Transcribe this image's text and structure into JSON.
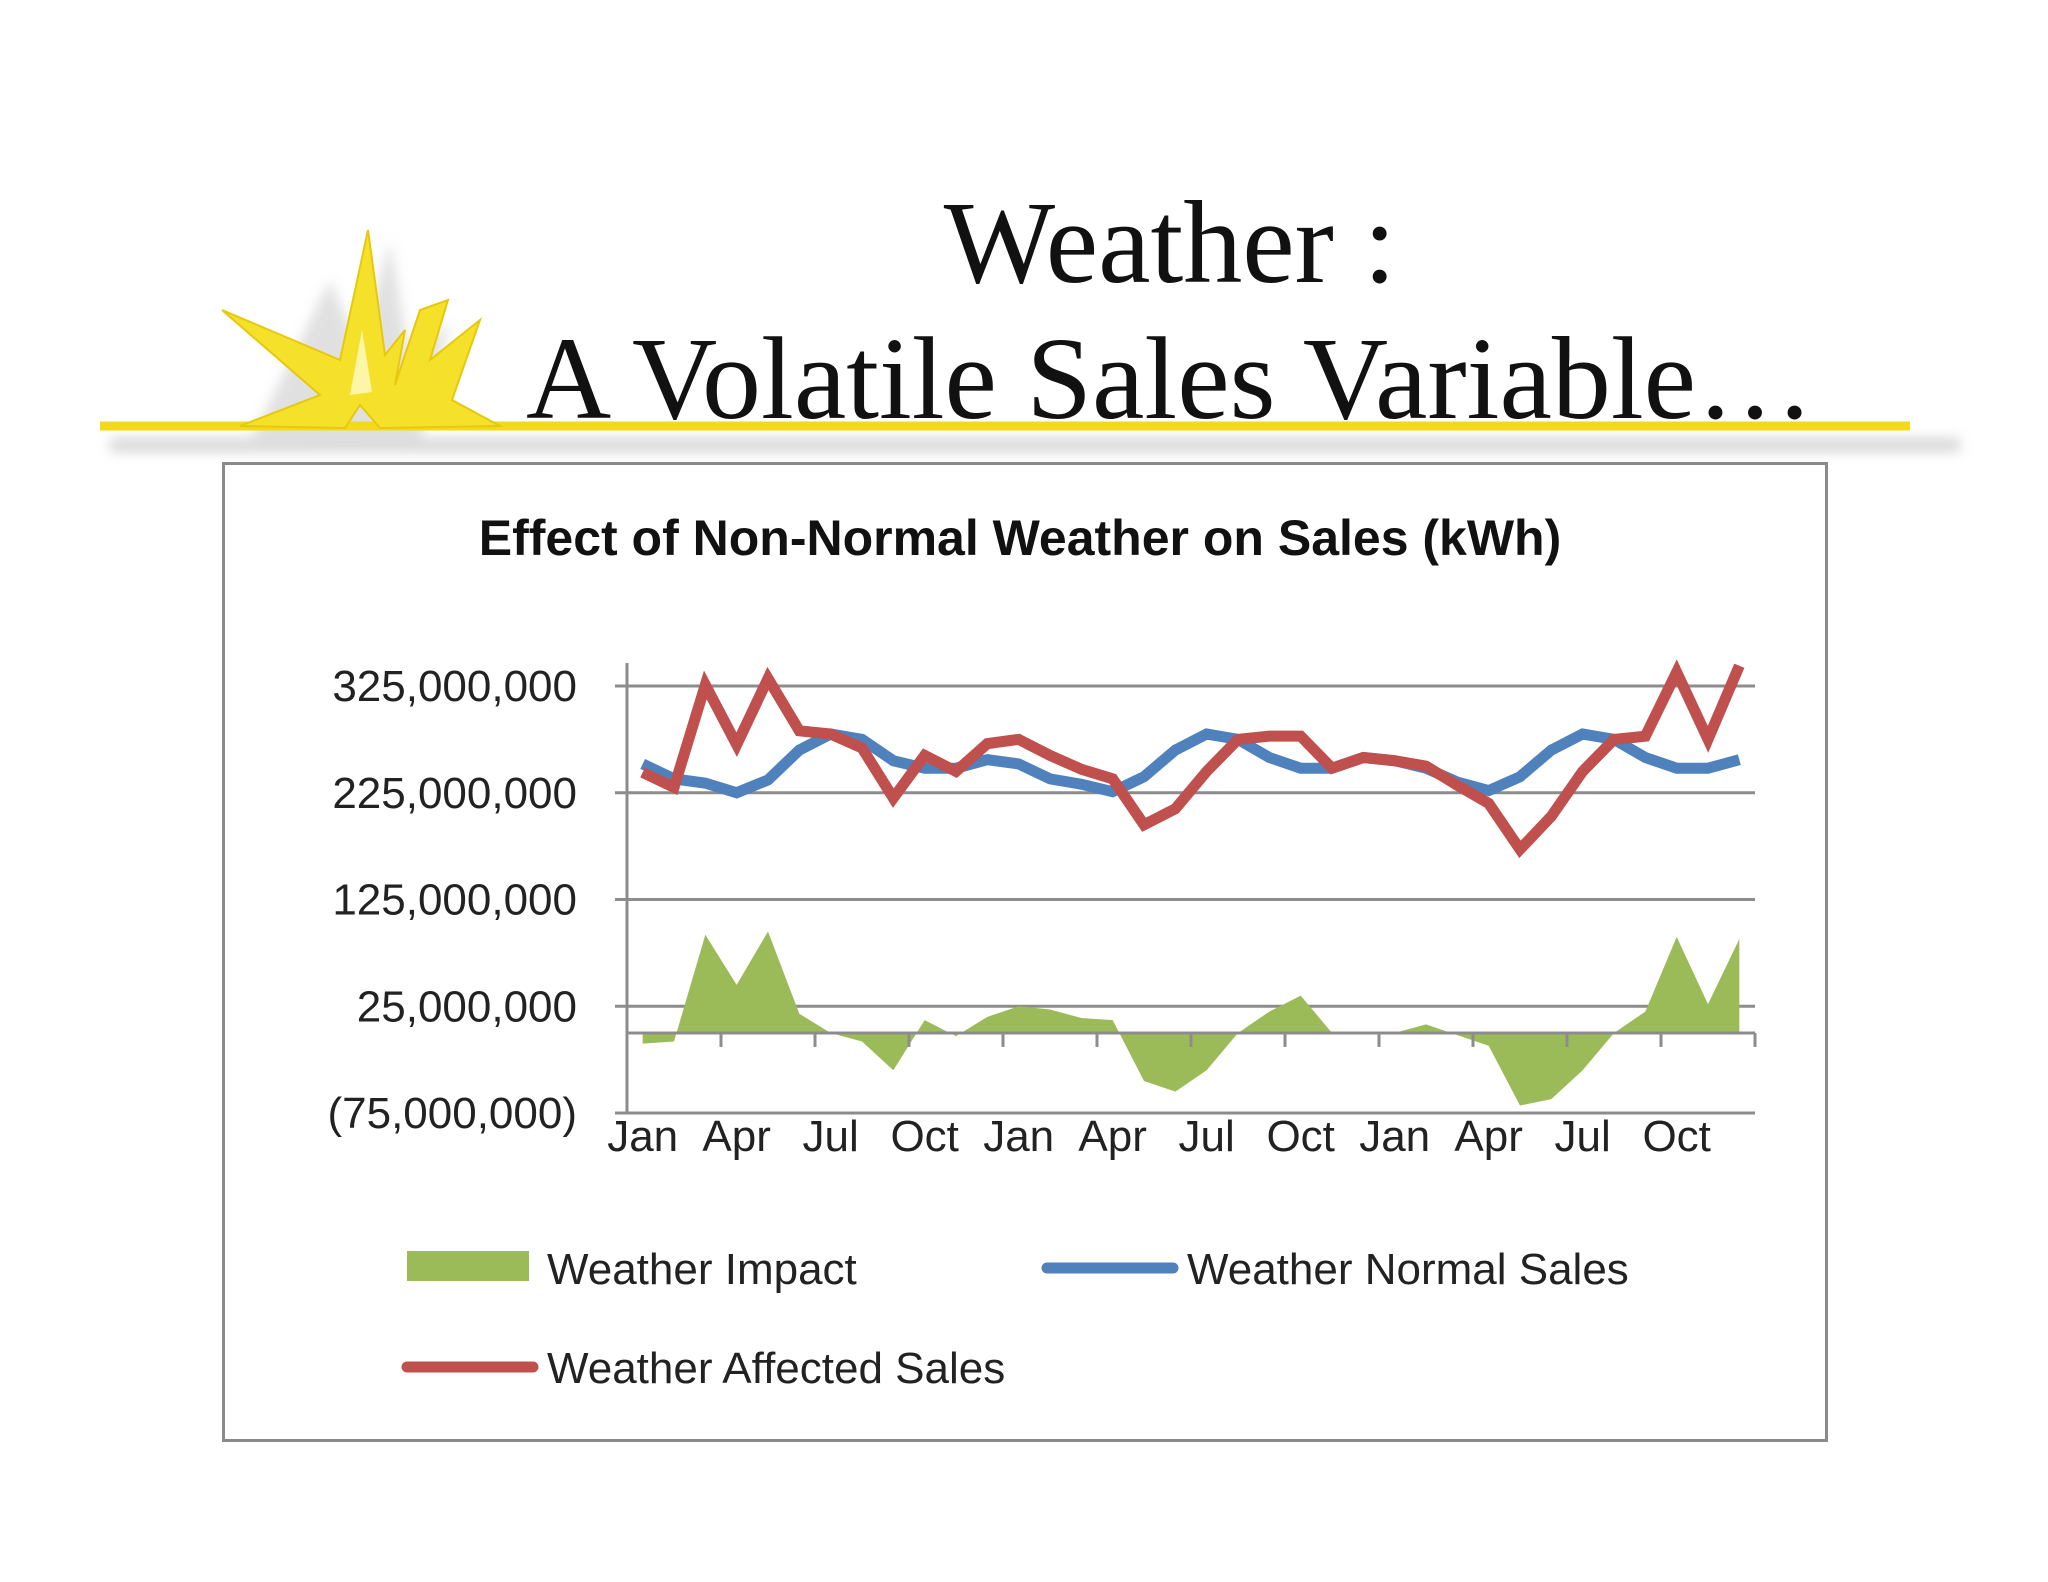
{
  "slide": {
    "title_line1": "Weather :",
    "title_line2": "A Volatile Sales Variable…",
    "logo": "starburst-lightning-logo"
  },
  "chart_data": {
    "type": "line",
    "title": "Effect of Non-Normal Weather on Sales (kWh)",
    "xlabel": "",
    "ylabel": "",
    "ylim": [
      -75000000,
      340000000
    ],
    "y_ticks": [
      325000000,
      225000000,
      125000000,
      25000000,
      -75000000
    ],
    "y_tick_labels": [
      "325,000,000",
      "225,000,000",
      "125,000,000",
      "25,000,000",
      "(75,000,000)"
    ],
    "x_tick_labels": [
      "Jan",
      "Apr",
      "Jul",
      "Oct",
      "Jan",
      "Apr",
      "Jul",
      "Oct",
      "Jan",
      "Apr",
      "Jul",
      "Oct"
    ],
    "x_tick_positions": [
      1,
      4,
      7,
      10,
      13,
      16,
      19,
      22,
      25,
      28,
      31,
      34
    ],
    "x": [
      1,
      2,
      3,
      4,
      5,
      6,
      7,
      8,
      9,
      10,
      11,
      12,
      13,
      14,
      15,
      16,
      17,
      18,
      19,
      20,
      21,
      22,
      23,
      24,
      25,
      26,
      27,
      28,
      29,
      30,
      31,
      32,
      33,
      34,
      35,
      36
    ],
    "grid": true,
    "legend_position": "bottom",
    "series": [
      {
        "name": "Weather Impact",
        "kind": "area",
        "color": "#9bbb59",
        "values": [
          -10000000,
          -8000000,
          92000000,
          45000000,
          95000000,
          18000000,
          0,
          -8000000,
          -35000000,
          12000000,
          -3000000,
          15000000,
          25000000,
          22000000,
          14000000,
          12000000,
          -45000000,
          -55000000,
          -35000000,
          0,
          20000000,
          35000000,
          0,
          0,
          0,
          8000000,
          -2000000,
          -12000000,
          -68000000,
          -62000000,
          -35000000,
          0,
          20000000,
          90000000,
          27000000,
          88000000
        ]
      },
      {
        "name": "Weather Normal Sales",
        "kind": "line",
        "color": "#4f81bd",
        "values": [
          252000000,
          238000000,
          234000000,
          225000000,
          237000000,
          265000000,
          280000000,
          275000000,
          255000000,
          248000000,
          248000000,
          256000000,
          252000000,
          238000000,
          233000000,
          226000000,
          240000000,
          265000000,
          280000000,
          275000000,
          258000000,
          248000000,
          248000000,
          258000000,
          255000000,
          248000000,
          235000000,
          227000000,
          240000000,
          265000000,
          280000000,
          275000000,
          258000000,
          248000000,
          248000000,
          256000000
        ]
      },
      {
        "name": "Weather Affected Sales",
        "kind": "line",
        "color": "#c0504d",
        "values": [
          244000000,
          230000000,
          326000000,
          270000000,
          332000000,
          283000000,
          280000000,
          267000000,
          220000000,
          260000000,
          245000000,
          271000000,
          275000000,
          260000000,
          247000000,
          238000000,
          195000000,
          210000000,
          245000000,
          275000000,
          278000000,
          278000000,
          248000000,
          258000000,
          255000000,
          250000000,
          232000000,
          215000000,
          172000000,
          203000000,
          245000000,
          275000000,
          278000000,
          338000000,
          275000000,
          344000000
        ]
      }
    ]
  }
}
